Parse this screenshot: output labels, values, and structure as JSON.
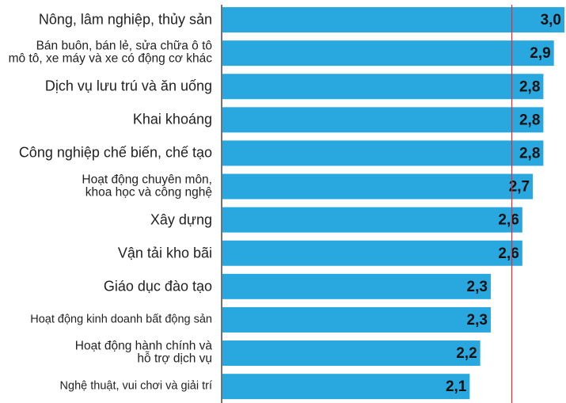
{
  "chart_data": {
    "type": "bar",
    "orientation": "horizontal",
    "categories": [
      "Nông, lâm nghiệp, thủy sản",
      "Bán buôn, bán lẻ, sửa chữa ô tô\nmô tô, xe máy và xe có động cơ khác",
      "Dịch vụ lưu trú và ăn uống",
      "Khai khoáng",
      "Công nghiệp chế biến, chế tạo",
      "Hoạt động chuyên môn,\nkhoa học và công nghệ",
      "Xây dựng",
      "Vận tải kho bãi",
      "Giáo dục đào tạo",
      "Hoạt động kinh doanh bất động sản",
      "Hoạt động hành chính và\nhỗ trợ dịch vụ",
      "Nghệ thuật, vui chơi và giải trí"
    ],
    "values": [
      3.0,
      2.9,
      2.8,
      2.8,
      2.8,
      2.7,
      2.6,
      2.6,
      2.3,
      2.3,
      2.2,
      2.1
    ],
    "value_labels": [
      "3,0",
      "2,9",
      "2,8",
      "2,8",
      "2,8",
      "2,7",
      "2,6",
      "2,6",
      "2,3",
      "2,3",
      "2,2",
      "2,1"
    ],
    "color": "#29a8e0",
    "xlim": [
      -0.25,
      3.0
    ],
    "reference_line": {
      "value": 2.5,
      "color": "#d9333f"
    }
  }
}
